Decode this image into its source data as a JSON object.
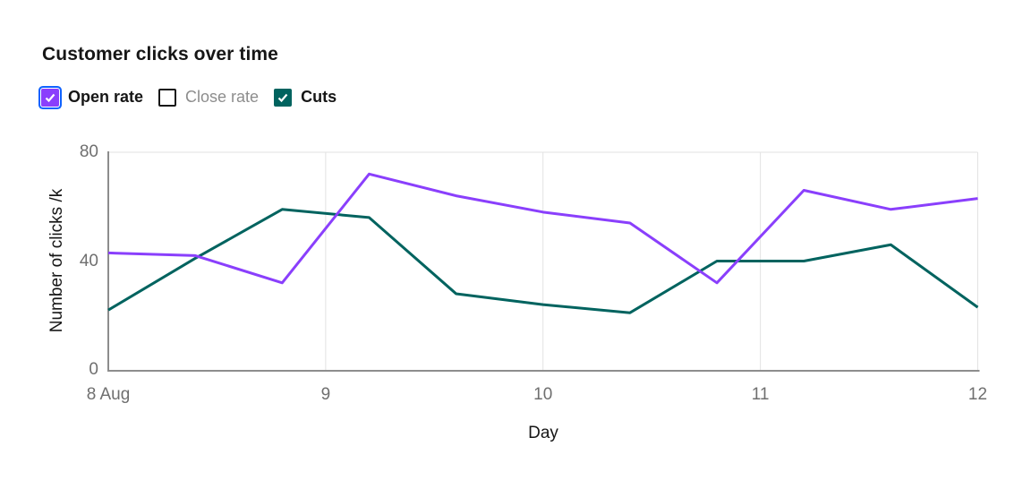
{
  "title": "Customer clicks over time",
  "legend": {
    "items": [
      {
        "label": "Open rate",
        "checked": true,
        "focused": true,
        "color": "#8a3ffc"
      },
      {
        "label": "Close rate",
        "checked": false,
        "focused": false,
        "color": null
      },
      {
        "label": "Cuts",
        "checked": true,
        "focused": false,
        "color": "#00635f"
      }
    ]
  },
  "colors": {
    "focus_ring": "#0f62fe",
    "axis_line": "#8d8d8d",
    "gridline": "#e2e2e2",
    "tick_text": "#6f6f6f",
    "text": "#161616"
  },
  "chart_data": {
    "type": "line",
    "title": "Customer clicks over time",
    "xlabel": "Day",
    "ylabel": "Number of clicks /k",
    "xlim": [
      8,
      12
    ],
    "ylim": [
      0,
      80
    ],
    "grid": {
      "vertical": true,
      "horizontal_top_only": true
    },
    "legend_position": "top",
    "x": [
      8,
      8.4,
      8.8,
      9.2,
      9.6,
      10,
      10.4,
      10.8,
      11.2,
      11.6,
      12
    ],
    "series": [
      {
        "name": "Open rate",
        "color": "#8a3ffc",
        "visible": true,
        "values": [
          43,
          42,
          32,
          72,
          64,
          58,
          54,
          32,
          66,
          59,
          63
        ]
      },
      {
        "name": "Cuts",
        "color": "#00635f",
        "visible": true,
        "values": [
          22,
          41,
          59,
          56,
          28,
          24,
          21,
          40,
          40,
          46,
          23
        ]
      }
    ],
    "hidden_series": [
      "Close rate"
    ],
    "x_ticks": [
      {
        "value": 8,
        "label": "8 Aug"
      },
      {
        "value": 9,
        "label": "9"
      },
      {
        "value": 10,
        "label": "10"
      },
      {
        "value": 11,
        "label": "11"
      },
      {
        "value": 12,
        "label": "12"
      }
    ],
    "y_ticks": [
      {
        "value": 0,
        "label": "0"
      },
      {
        "value": 40,
        "label": "40"
      },
      {
        "value": 80,
        "label": "80"
      }
    ]
  }
}
